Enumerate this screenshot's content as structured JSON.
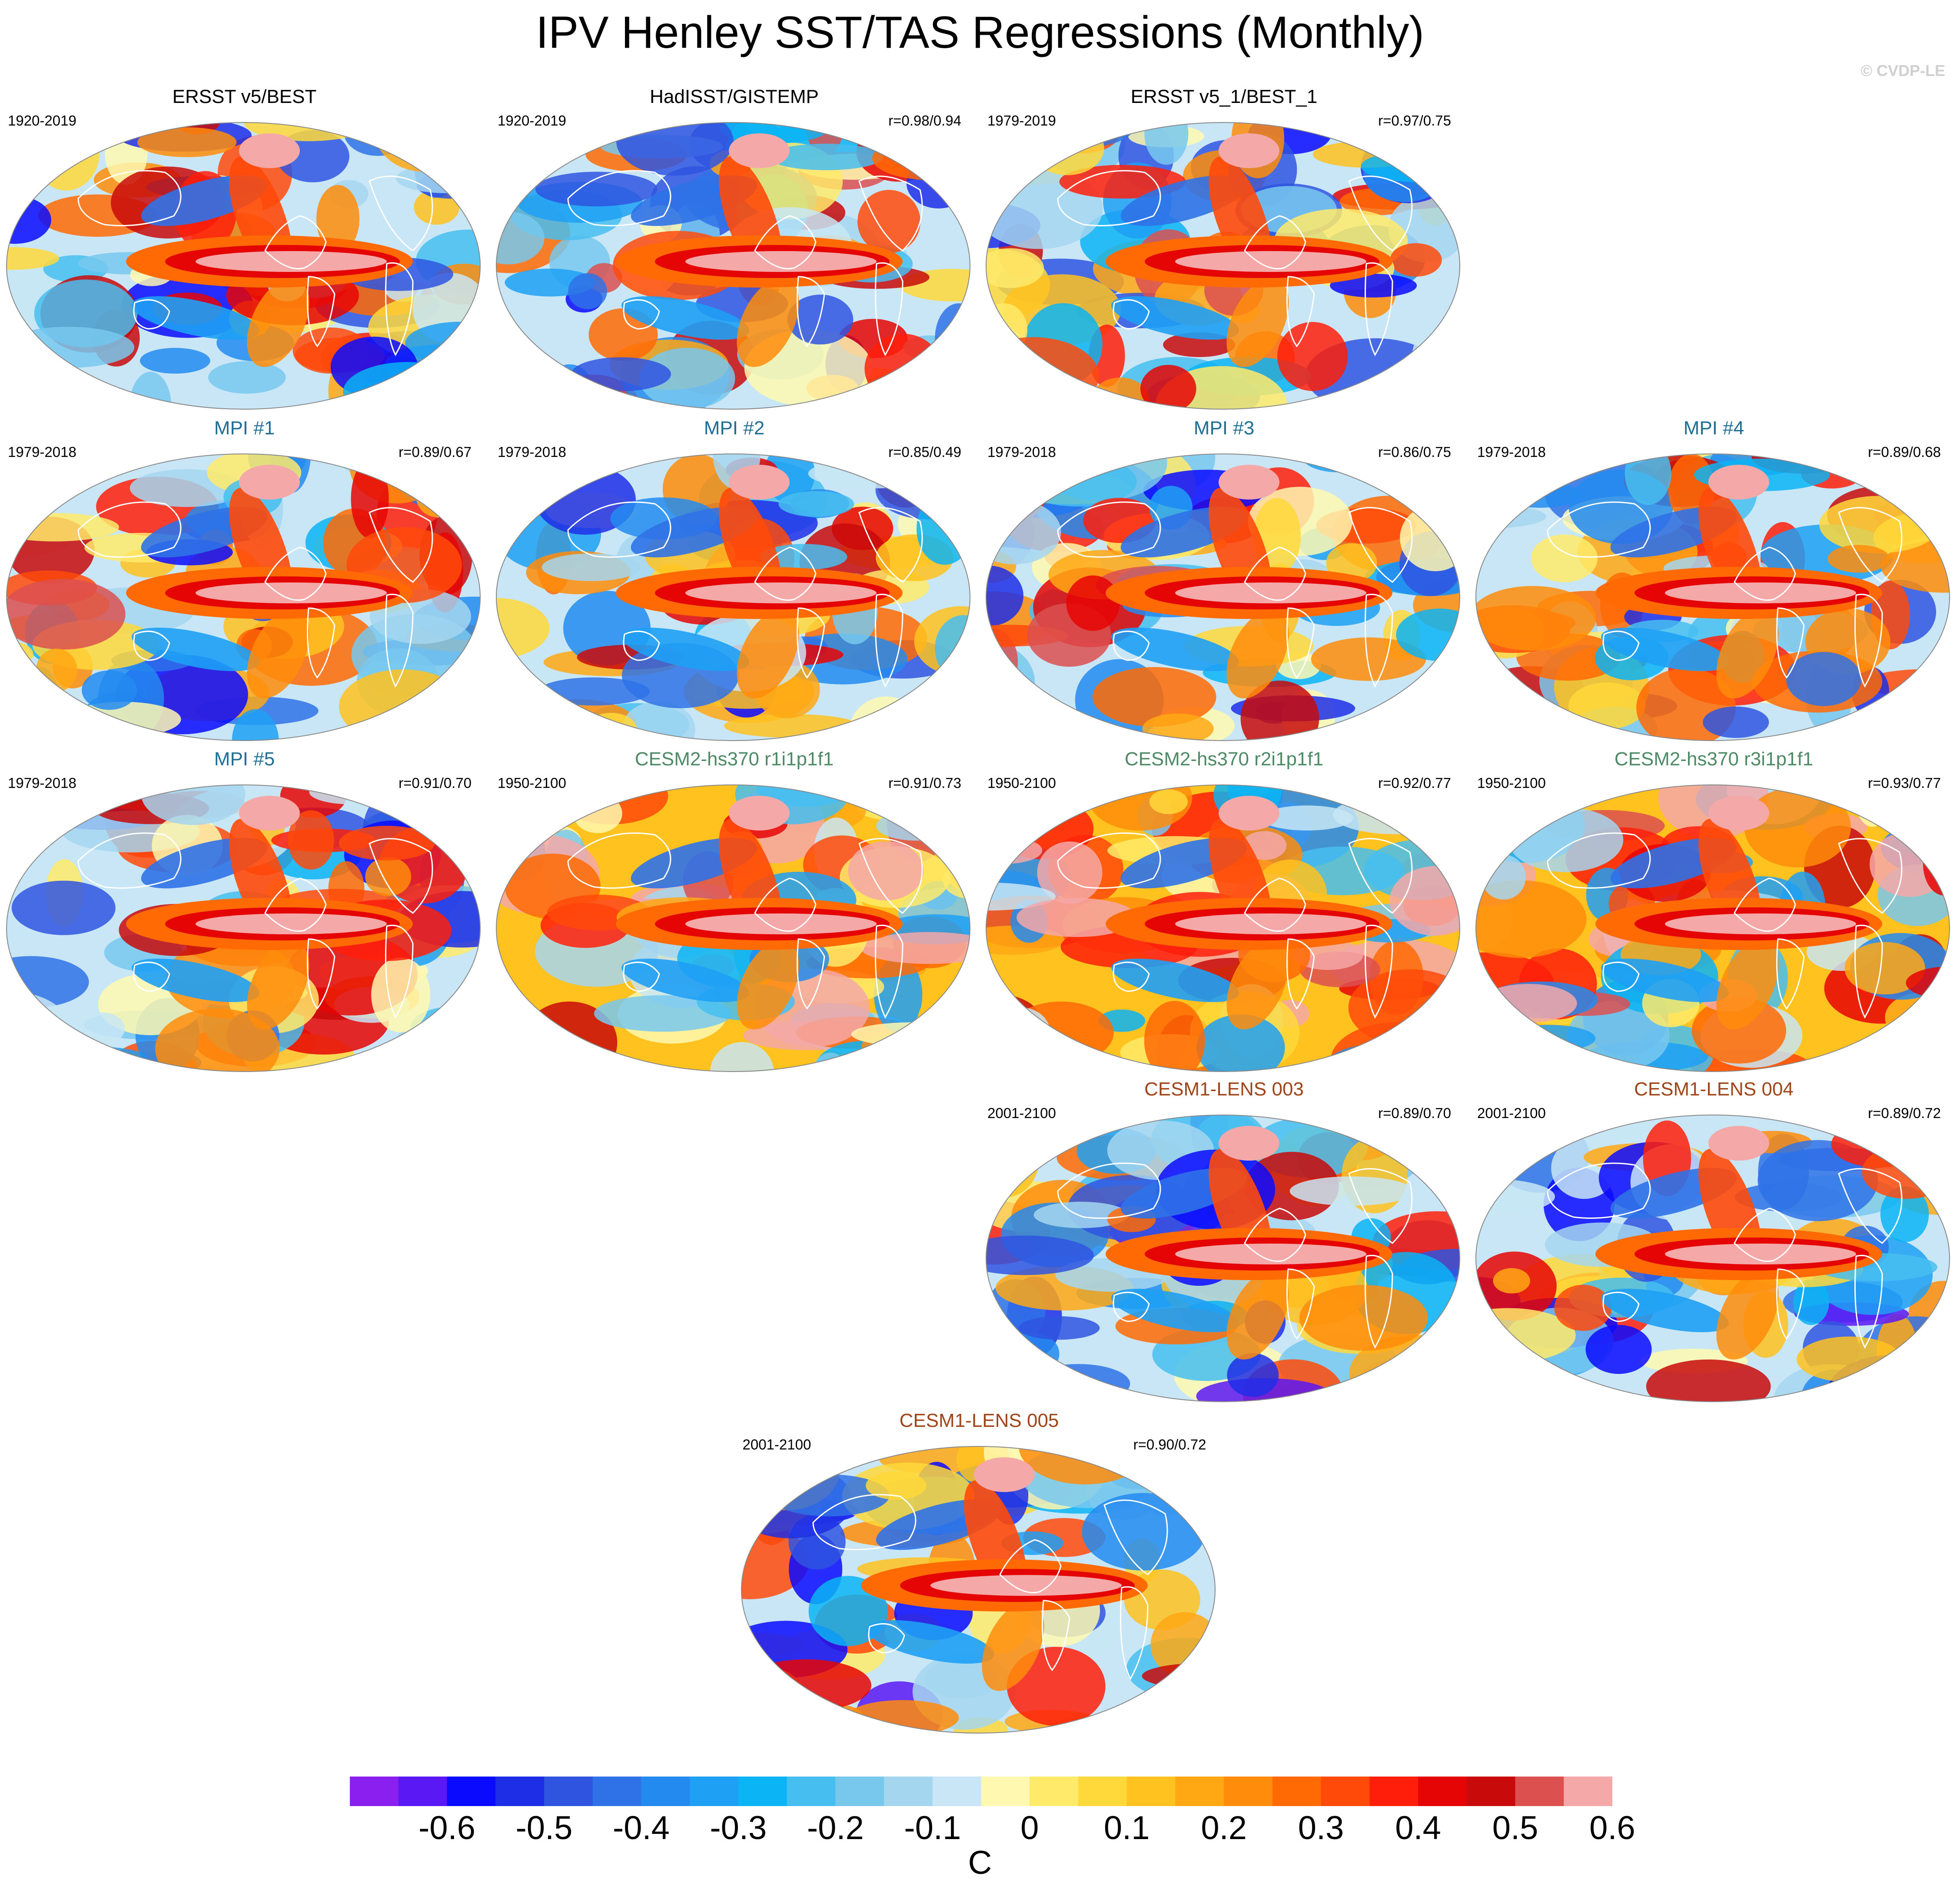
{
  "title": "IPV Henley SST/TAS Regressions (Monthly)",
  "copyright": "© CVDP-LE",
  "colors": {
    "observed": "#000000",
    "MPI": "#1f6f95",
    "CESM2": "#4f8a66",
    "CESM1": "#a0441a"
  },
  "chart_data": {
    "type": "heatmap",
    "description_type": "map panels of regression coefficients",
    "panels": [
      {
        "title": "ERSST v5/BEST",
        "group": "observed",
        "years": "1920-2019",
        "corr": "",
        "row": 0,
        "col": 0
      },
      {
        "title": "HadISST/GISTEMP",
        "group": "observed",
        "years": "1920-2019",
        "corr": "r=0.98/0.94",
        "row": 0,
        "col": 1
      },
      {
        "title": "ERSST v5_1/BEST_1",
        "group": "observed",
        "years": "1979-2019",
        "corr": "r=0.97/0.75",
        "row": 0,
        "col": 2
      },
      {
        "title": "MPI #1",
        "group": "MPI",
        "years": "1979-2018",
        "corr": "r=0.89/0.67",
        "row": 1,
        "col": 0
      },
      {
        "title": "MPI #2",
        "group": "MPI",
        "years": "1979-2018",
        "corr": "r=0.85/0.49",
        "row": 1,
        "col": 1
      },
      {
        "title": "MPI #3",
        "group": "MPI",
        "years": "1979-2018",
        "corr": "r=0.86/0.75",
        "row": 1,
        "col": 2
      },
      {
        "title": "MPI #4",
        "group": "MPI",
        "years": "1979-2018",
        "corr": "r=0.89/0.68",
        "row": 1,
        "col": 3
      },
      {
        "title": "MPI #5",
        "group": "MPI",
        "years": "1979-2018",
        "corr": "r=0.91/0.70",
        "row": 2,
        "col": 0
      },
      {
        "title": "CESM2-hs370 r1i1p1f1",
        "group": "CESM2",
        "years": "1950-2100",
        "corr": "r=0.91/0.73",
        "row": 2,
        "col": 1
      },
      {
        "title": "CESM2-hs370 r2i1p1f1",
        "group": "CESM2",
        "years": "1950-2100",
        "corr": "r=0.92/0.77",
        "row": 2,
        "col": 2
      },
      {
        "title": "CESM2-hs370 r3i1p1f1",
        "group": "CESM2",
        "years": "1950-2100",
        "corr": "r=0.93/0.77",
        "row": 2,
        "col": 3
      },
      {
        "title": "CESM1-LENS 003",
        "group": "CESM1",
        "years": "2001-2100",
        "corr": "r=0.89/0.70",
        "row": 3,
        "col": 2
      },
      {
        "title": "CESM1-LENS 004",
        "group": "CESM1",
        "years": "2001-2100",
        "corr": "r=0.89/0.72",
        "row": 3,
        "col": 3
      },
      {
        "title": "CESM1-LENS 005",
        "group": "CESM1",
        "years": "2001-2100",
        "corr": "r=0.90/0.72",
        "row": 4,
        "col": 1.5
      }
    ],
    "colorbar": {
      "colors": [
        "#8a1ff0",
        "#5a18f5",
        "#0a0aff",
        "#1e2ee6",
        "#2f55e0",
        "#2f72e8",
        "#238bf0",
        "#1ea0f5",
        "#0ab4f5",
        "#46bef0",
        "#78c8ee",
        "#a4d6f0",
        "#c8e6f5",
        "#fff8b0",
        "#ffea6a",
        "#ffd83a",
        "#ffc21e",
        "#ffa814",
        "#ff8c0a",
        "#ff6a05",
        "#ff4a0a",
        "#ff1e0a",
        "#e60505",
        "#c80a0a",
        "#dc5050",
        "#f5a8a8"
      ],
      "ticks": [
        -0.6,
        -0.5,
        -0.4,
        -0.3,
        -0.2,
        -0.1,
        0,
        0.1,
        0.2,
        0.3,
        0.4,
        0.5,
        0.6
      ],
      "tick_labels": [
        "-0.6",
        "-0.5",
        "-0.4",
        "-0.3",
        "-0.2",
        "-0.1",
        "0",
        "0.1",
        "0.2",
        "0.3",
        "0.4",
        "0.5",
        "0.6"
      ],
      "units": "C"
    }
  }
}
